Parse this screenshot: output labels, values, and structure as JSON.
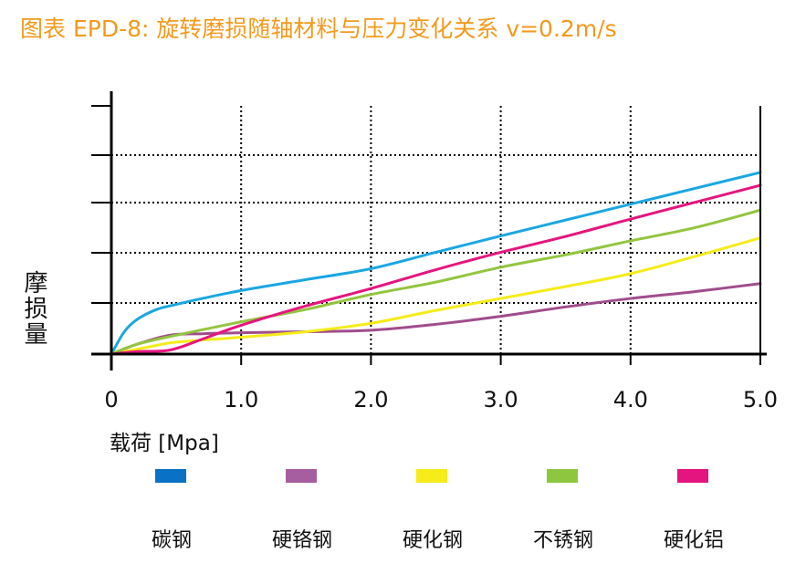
{
  "title": "图表 EPD-8: 旋转磨损随轴材料与压力变化关系 v=0.2m/s",
  "colors": {
    "title": "#f39a1c",
    "axis": "#000000",
    "grid": "#000000"
  },
  "chart_data": {
    "type": "line",
    "title": "图表 EPD-8: 旋转磨损随轴材料与压力变化关系 v=0.2m/s",
    "xlabel": "载荷 [Mpa]",
    "ylabel": "摩损量",
    "xlim": [
      0,
      5
    ],
    "ylim": [
      0,
      5
    ],
    "x_ticks": [
      "0",
      "1.0",
      "2.0",
      "3.0",
      "4.0",
      "5.0"
    ],
    "y_ticks_labeled": false,
    "grid": true,
    "legend_position": "bottom",
    "series": [
      {
        "name": "碳钢",
        "color": "#1aa7e1",
        "points": [
          [
            0,
            0
          ],
          [
            0.1,
            0.45
          ],
          [
            0.2,
            0.7
          ],
          [
            0.35,
            0.9
          ],
          [
            0.5,
            1.0
          ],
          [
            0.7,
            1.12
          ],
          [
            1.0,
            1.28
          ],
          [
            1.5,
            1.5
          ],
          [
            2.0,
            1.72
          ],
          [
            2.5,
            2.05
          ],
          [
            3.0,
            2.38
          ],
          [
            3.5,
            2.7
          ],
          [
            4.0,
            3.02
          ],
          [
            4.5,
            3.34
          ],
          [
            5.0,
            3.66
          ]
        ]
      },
      {
        "name": "硬铬钢",
        "color": "#a04d8c",
        "points": [
          [
            0,
            0
          ],
          [
            0.2,
            0.2
          ],
          [
            0.45,
            0.38
          ],
          [
            0.7,
            0.41
          ],
          [
            1.0,
            0.43
          ],
          [
            1.5,
            0.45
          ],
          [
            2.0,
            0.48
          ],
          [
            2.5,
            0.6
          ],
          [
            3.0,
            0.76
          ],
          [
            3.5,
            0.95
          ],
          [
            4.0,
            1.12
          ],
          [
            4.5,
            1.26
          ],
          [
            5.0,
            1.42
          ]
        ]
      },
      {
        "name": "硬化钢",
        "color": "#f5ec1a",
        "points": [
          [
            0,
            0
          ],
          [
            0.3,
            0.15
          ],
          [
            0.5,
            0.24
          ],
          [
            1.0,
            0.34
          ],
          [
            1.5,
            0.45
          ],
          [
            2.0,
            0.62
          ],
          [
            2.5,
            0.88
          ],
          [
            3.0,
            1.12
          ],
          [
            3.5,
            1.36
          ],
          [
            4.0,
            1.62
          ],
          [
            4.5,
            1.97
          ],
          [
            5.0,
            2.34
          ]
        ]
      },
      {
        "name": "不锈钢",
        "color": "#93c53f",
        "points": [
          [
            0,
            0
          ],
          [
            0.2,
            0.2
          ],
          [
            0.5,
            0.38
          ],
          [
            1.0,
            0.65
          ],
          [
            1.5,
            0.9
          ],
          [
            2.0,
            1.2
          ],
          [
            2.5,
            1.45
          ],
          [
            3.0,
            1.75
          ],
          [
            3.5,
            2.0
          ],
          [
            4.0,
            2.28
          ],
          [
            4.5,
            2.55
          ],
          [
            5.0,
            2.9
          ]
        ]
      },
      {
        "name": "硬化铝",
        "color": "#e6157f",
        "points": [
          [
            0,
            0
          ],
          [
            0.2,
            0.05
          ],
          [
            0.45,
            0.08
          ],
          [
            0.7,
            0.3
          ],
          [
            1.0,
            0.58
          ],
          [
            1.5,
            0.97
          ],
          [
            2.0,
            1.32
          ],
          [
            2.5,
            1.7
          ],
          [
            3.0,
            2.05
          ],
          [
            3.5,
            2.37
          ],
          [
            4.0,
            2.72
          ],
          [
            4.5,
            3.06
          ],
          [
            5.0,
            3.4
          ]
        ]
      }
    ]
  },
  "legend": {
    "items": [
      {
        "label": "碳钢",
        "color": "#0a72c4"
      },
      {
        "label": "硬铬钢",
        "color": "#a75ea0"
      },
      {
        "label": "硬化钢",
        "color": "#f5ec1a"
      },
      {
        "label": "不锈钢",
        "color": "#8dc63f"
      },
      {
        "label": "硬化铝",
        "color": "#e4157f"
      }
    ]
  }
}
